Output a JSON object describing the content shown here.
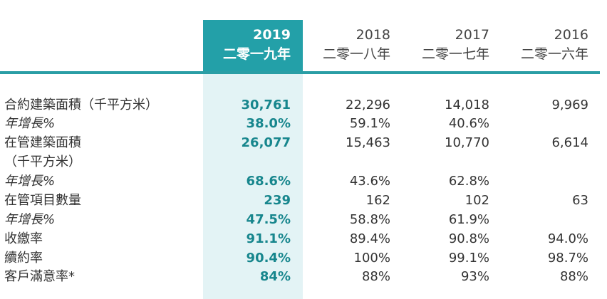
{
  "header": {
    "columns": [
      {
        "year": "2019",
        "chinese": "二零一九年"
      },
      {
        "year": "2018",
        "chinese": "二零一八年"
      },
      {
        "year": "2017",
        "chinese": "二零一七年"
      },
      {
        "year": "2016",
        "chinese": "二零一六年"
      }
    ]
  },
  "table": {
    "rows": [
      {
        "label": [
          "合約建築面積（千平方米）"
        ],
        "values": [
          "30,761",
          "22,296",
          "14,018",
          "9,969"
        ]
      },
      {
        "label": [
          "年增長%"
        ],
        "italic": true,
        "values": [
          "38.0%",
          "59.1%",
          "40.6%",
          null
        ]
      },
      {
        "label": [
          "在管建築面積",
          "（千平方米）"
        ],
        "values": [
          "26,077",
          "15,463",
          "10,770",
          "6,614"
        ]
      },
      {
        "label": [
          "年增長%"
        ],
        "italic": true,
        "values": [
          "68.6%",
          "43.6%",
          "62.8%",
          null
        ]
      },
      {
        "label": [
          "在管項目數量"
        ],
        "values": [
          "239",
          "162",
          "102",
          "63"
        ]
      },
      {
        "label": [
          "年增長%"
        ],
        "italic": true,
        "values": [
          "47.5%",
          "58.8%",
          "61.9%",
          null
        ]
      },
      {
        "label": [
          "收繳率"
        ],
        "values": [
          "91.1%",
          "89.4%",
          "90.8%",
          "94.0%"
        ]
      },
      {
        "label": [
          "續約率"
        ],
        "values": [
          "90.4%",
          "100%",
          "99.1%",
          "98.7%"
        ]
      },
      {
        "label": [
          "客戶滿意率*"
        ],
        "values": [
          "84%",
          "88%",
          "93%",
          "88%"
        ]
      }
    ]
  }
}
